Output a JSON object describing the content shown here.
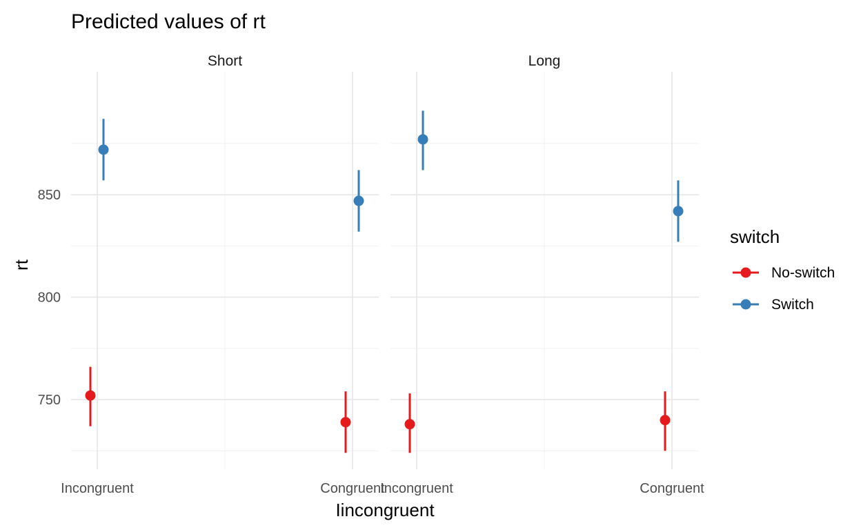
{
  "chart_data": {
    "type": "scatter",
    "title": "Predicted values of rt",
    "xlabel": "Iincongruent",
    "ylabel": "rt",
    "facets": [
      "Short",
      "Long"
    ],
    "categories": [
      "Incongruent",
      "Congruent"
    ],
    "ylim": [
      716,
      910
    ],
    "yticks": [
      750,
      800,
      850
    ],
    "grid": true,
    "legend": {
      "title": "switch",
      "position": "right",
      "entries": [
        "No-switch",
        "Switch"
      ]
    },
    "series": [
      {
        "name": "No-switch",
        "color": "#E41A1C",
        "points": [
          {
            "facet": "Short",
            "x": "Incongruent",
            "y": 752,
            "lower": 737,
            "upper": 766
          },
          {
            "facet": "Short",
            "x": "Congruent",
            "y": 739,
            "lower": 724,
            "upper": 754
          },
          {
            "facet": "Long",
            "x": "Incongruent",
            "y": 738,
            "lower": 724,
            "upper": 753
          },
          {
            "facet": "Long",
            "x": "Congruent",
            "y": 740,
            "lower": 725,
            "upper": 754
          }
        ]
      },
      {
        "name": "Switch",
        "color": "#377EB8",
        "points": [
          {
            "facet": "Short",
            "x": "Incongruent",
            "y": 872,
            "lower": 857,
            "upper": 887
          },
          {
            "facet": "Short",
            "x": "Congruent",
            "y": 847,
            "lower": 832,
            "upper": 862
          },
          {
            "facet": "Long",
            "x": "Incongruent",
            "y": 877,
            "lower": 862,
            "upper": 891
          },
          {
            "facet": "Long",
            "x": "Congruent",
            "y": 842,
            "lower": 827,
            "upper": 857
          }
        ]
      }
    ]
  }
}
